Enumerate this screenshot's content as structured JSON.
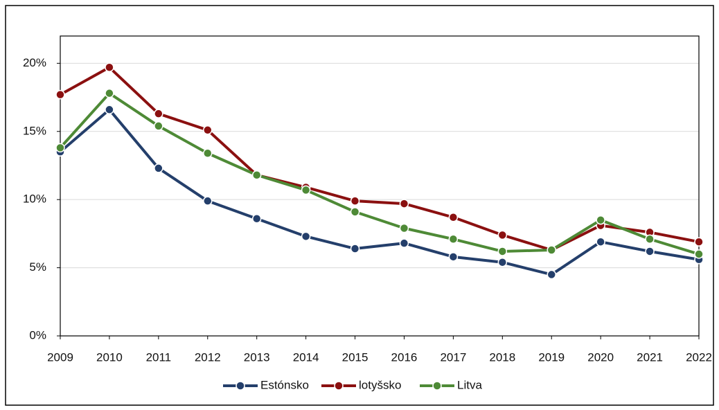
{
  "chart_data": {
    "type": "line",
    "categories": [
      "2009",
      "2010",
      "2011",
      "2012",
      "2013",
      "2014",
      "2015",
      "2016",
      "2017",
      "2018",
      "2019",
      "2020",
      "2021",
      "2022"
    ],
    "series": [
      {
        "name": "Estónsko",
        "color": "#243f6b",
        "values": [
          13.5,
          16.6,
          12.3,
          9.9,
          8.6,
          7.3,
          6.4,
          6.8,
          5.8,
          5.4,
          4.5,
          6.9,
          6.2,
          5.6
        ]
      },
      {
        "name": "lotyšsko",
        "color": "#8b1010",
        "values": [
          17.7,
          19.7,
          16.3,
          15.1,
          11.8,
          10.9,
          9.9,
          9.7,
          8.7,
          7.4,
          6.3,
          8.1,
          7.6,
          6.9
        ]
      },
      {
        "name": "Litva",
        "color": "#4e8a36",
        "values": [
          13.8,
          17.8,
          15.4,
          13.4,
          11.8,
          10.7,
          9.1,
          7.9,
          7.1,
          6.2,
          6.3,
          8.5,
          7.1,
          6.0
        ]
      }
    ],
    "ylim": [
      0,
      22
    ],
    "yticks": [
      {
        "value": 0,
        "label": "0%"
      },
      {
        "value": 5,
        "label": "5%"
      },
      {
        "value": 10,
        "label": "10%"
      },
      {
        "value": 15,
        "label": "15%"
      },
      {
        "value": 20,
        "label": "20%"
      }
    ],
    "grid": true,
    "legend": "bottom"
  }
}
